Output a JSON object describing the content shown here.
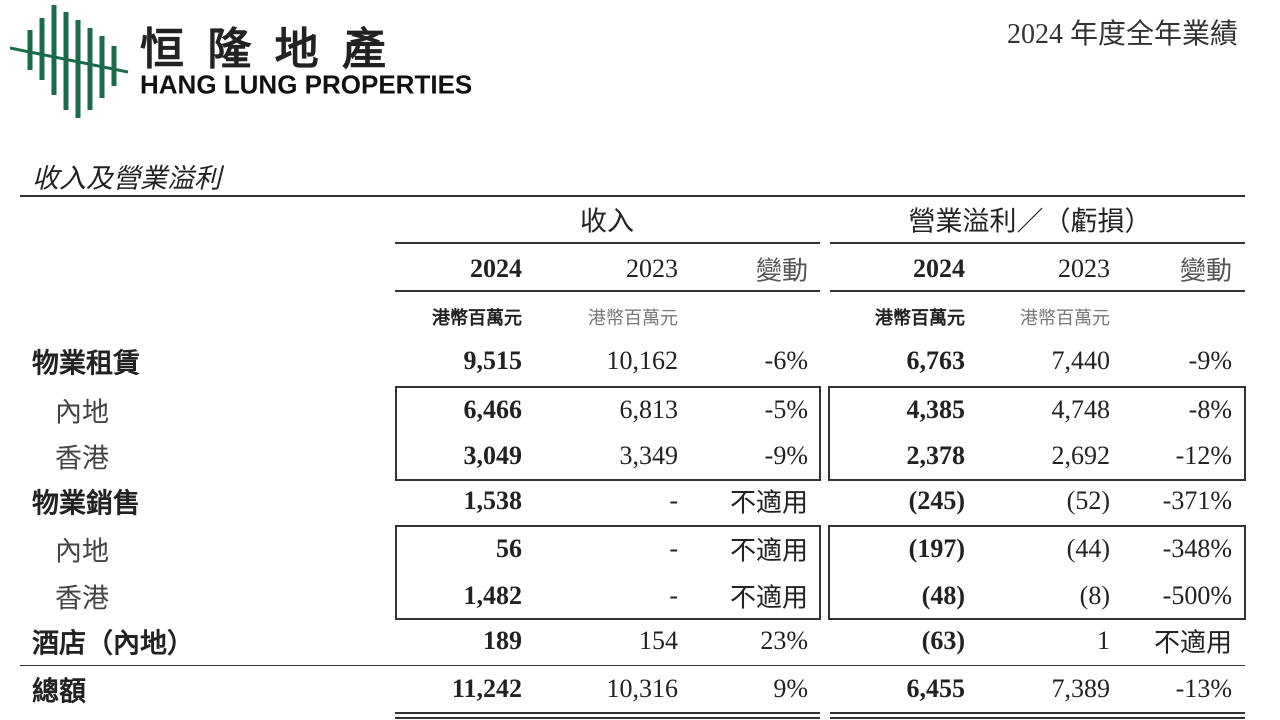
{
  "header": {
    "logo_cn": "恒 隆 地 產",
    "logo_en": "HANG LUNG PROPERTIES",
    "report": "2024 年度全年業績"
  },
  "section_title": "收入及營業溢利",
  "table": {
    "groups": [
      "收入",
      "營業溢利／（虧損）"
    ],
    "columns": [
      "2024",
      "2023",
      "變動",
      "2024",
      "2023",
      "變動"
    ],
    "units": [
      "港幣百萬元",
      "港幣百萬元",
      "港幣百萬元",
      "港幣百萬元"
    ],
    "rows": [
      {
        "label": "物業租賃",
        "cells": [
          "9,515",
          "10,162",
          "-6%",
          "6,763",
          "7,440",
          "-9%"
        ]
      },
      {
        "label": "內地",
        "cells": [
          "6,466",
          "6,813",
          "-5%",
          "4,385",
          "4,748",
          "-8%"
        ]
      },
      {
        "label": "香港",
        "cells": [
          "3,049",
          "3,349",
          "-9%",
          "2,378",
          "2,692",
          "-12%"
        ]
      },
      {
        "label": "物業銷售",
        "cells": [
          "1,538",
          "-",
          "不適用",
          "(245)",
          "(52)",
          "-371%"
        ]
      },
      {
        "label": "內地",
        "cells": [
          "56",
          "-",
          "不適用",
          "(197)",
          "(44)",
          "-348%"
        ]
      },
      {
        "label": "香港",
        "cells": [
          "1,482",
          "-",
          "不適用",
          "(48)",
          "(8)",
          "-500%"
        ]
      },
      {
        "label": "酒店（內地）",
        "cells": [
          "189",
          "154",
          "23%",
          "(63)",
          "1",
          "不適用"
        ]
      },
      {
        "label": "總額",
        "cells": [
          "11,242",
          "10,316",
          "9%",
          "6,455",
          "7,389",
          "-13%"
        ]
      }
    ]
  }
}
